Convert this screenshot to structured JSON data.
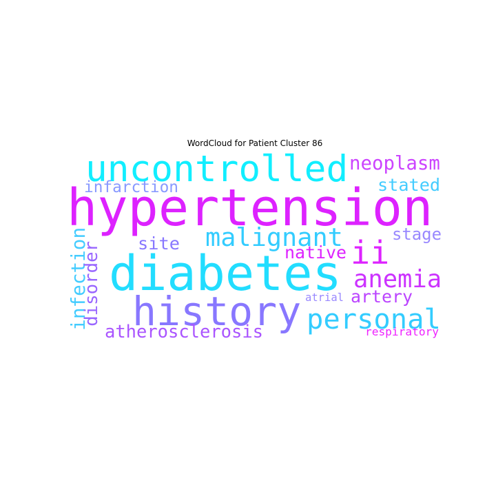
{
  "title": "WordCloud for Patient Cluster 86",
  "words": [
    {
      "text": "hypertension",
      "color": "#dd22ff",
      "orientation": "horizontal"
    },
    {
      "text": "diabetes",
      "color": "#22ddff",
      "orientation": "horizontal"
    },
    {
      "text": "uncontrolled",
      "color": "#11eeff",
      "orientation": "horizontal"
    },
    {
      "text": "history",
      "color": "#8877ff",
      "orientation": "horizontal"
    },
    {
      "text": "personal",
      "color": "#33ccff",
      "orientation": "horizontal"
    },
    {
      "text": "malignant",
      "color": "#33ccff",
      "orientation": "horizontal"
    },
    {
      "text": "ii",
      "color": "#dd22ff",
      "orientation": "horizontal"
    },
    {
      "text": "anemia",
      "color": "#cc33ff",
      "orientation": "horizontal"
    },
    {
      "text": "neoplasm",
      "color": "#cc44ff",
      "orientation": "horizontal"
    },
    {
      "text": "infection",
      "color": "#44ccff",
      "orientation": "vertical"
    },
    {
      "text": "disorder",
      "color": "#9966ff",
      "orientation": "vertical"
    },
    {
      "text": "atherosclerosis",
      "color": "#aa55ff",
      "orientation": "horizontal"
    },
    {
      "text": "artery",
      "color": "#bb44ff",
      "orientation": "horizontal"
    },
    {
      "text": "native",
      "color": "#dd22ff",
      "orientation": "horizontal"
    },
    {
      "text": "stated",
      "color": "#44ccff",
      "orientation": "horizontal"
    },
    {
      "text": "stage",
      "color": "#9988ff",
      "orientation": "horizontal"
    },
    {
      "text": "infarction",
      "color": "#8899ff",
      "orientation": "horizontal"
    },
    {
      "text": "site",
      "color": "#8877ff",
      "orientation": "horizontal"
    },
    {
      "text": "atrial",
      "color": "#9988ff",
      "orientation": "horizontal"
    },
    {
      "text": "respiratory",
      "color": "#ee22ff",
      "orientation": "horizontal"
    }
  ]
}
